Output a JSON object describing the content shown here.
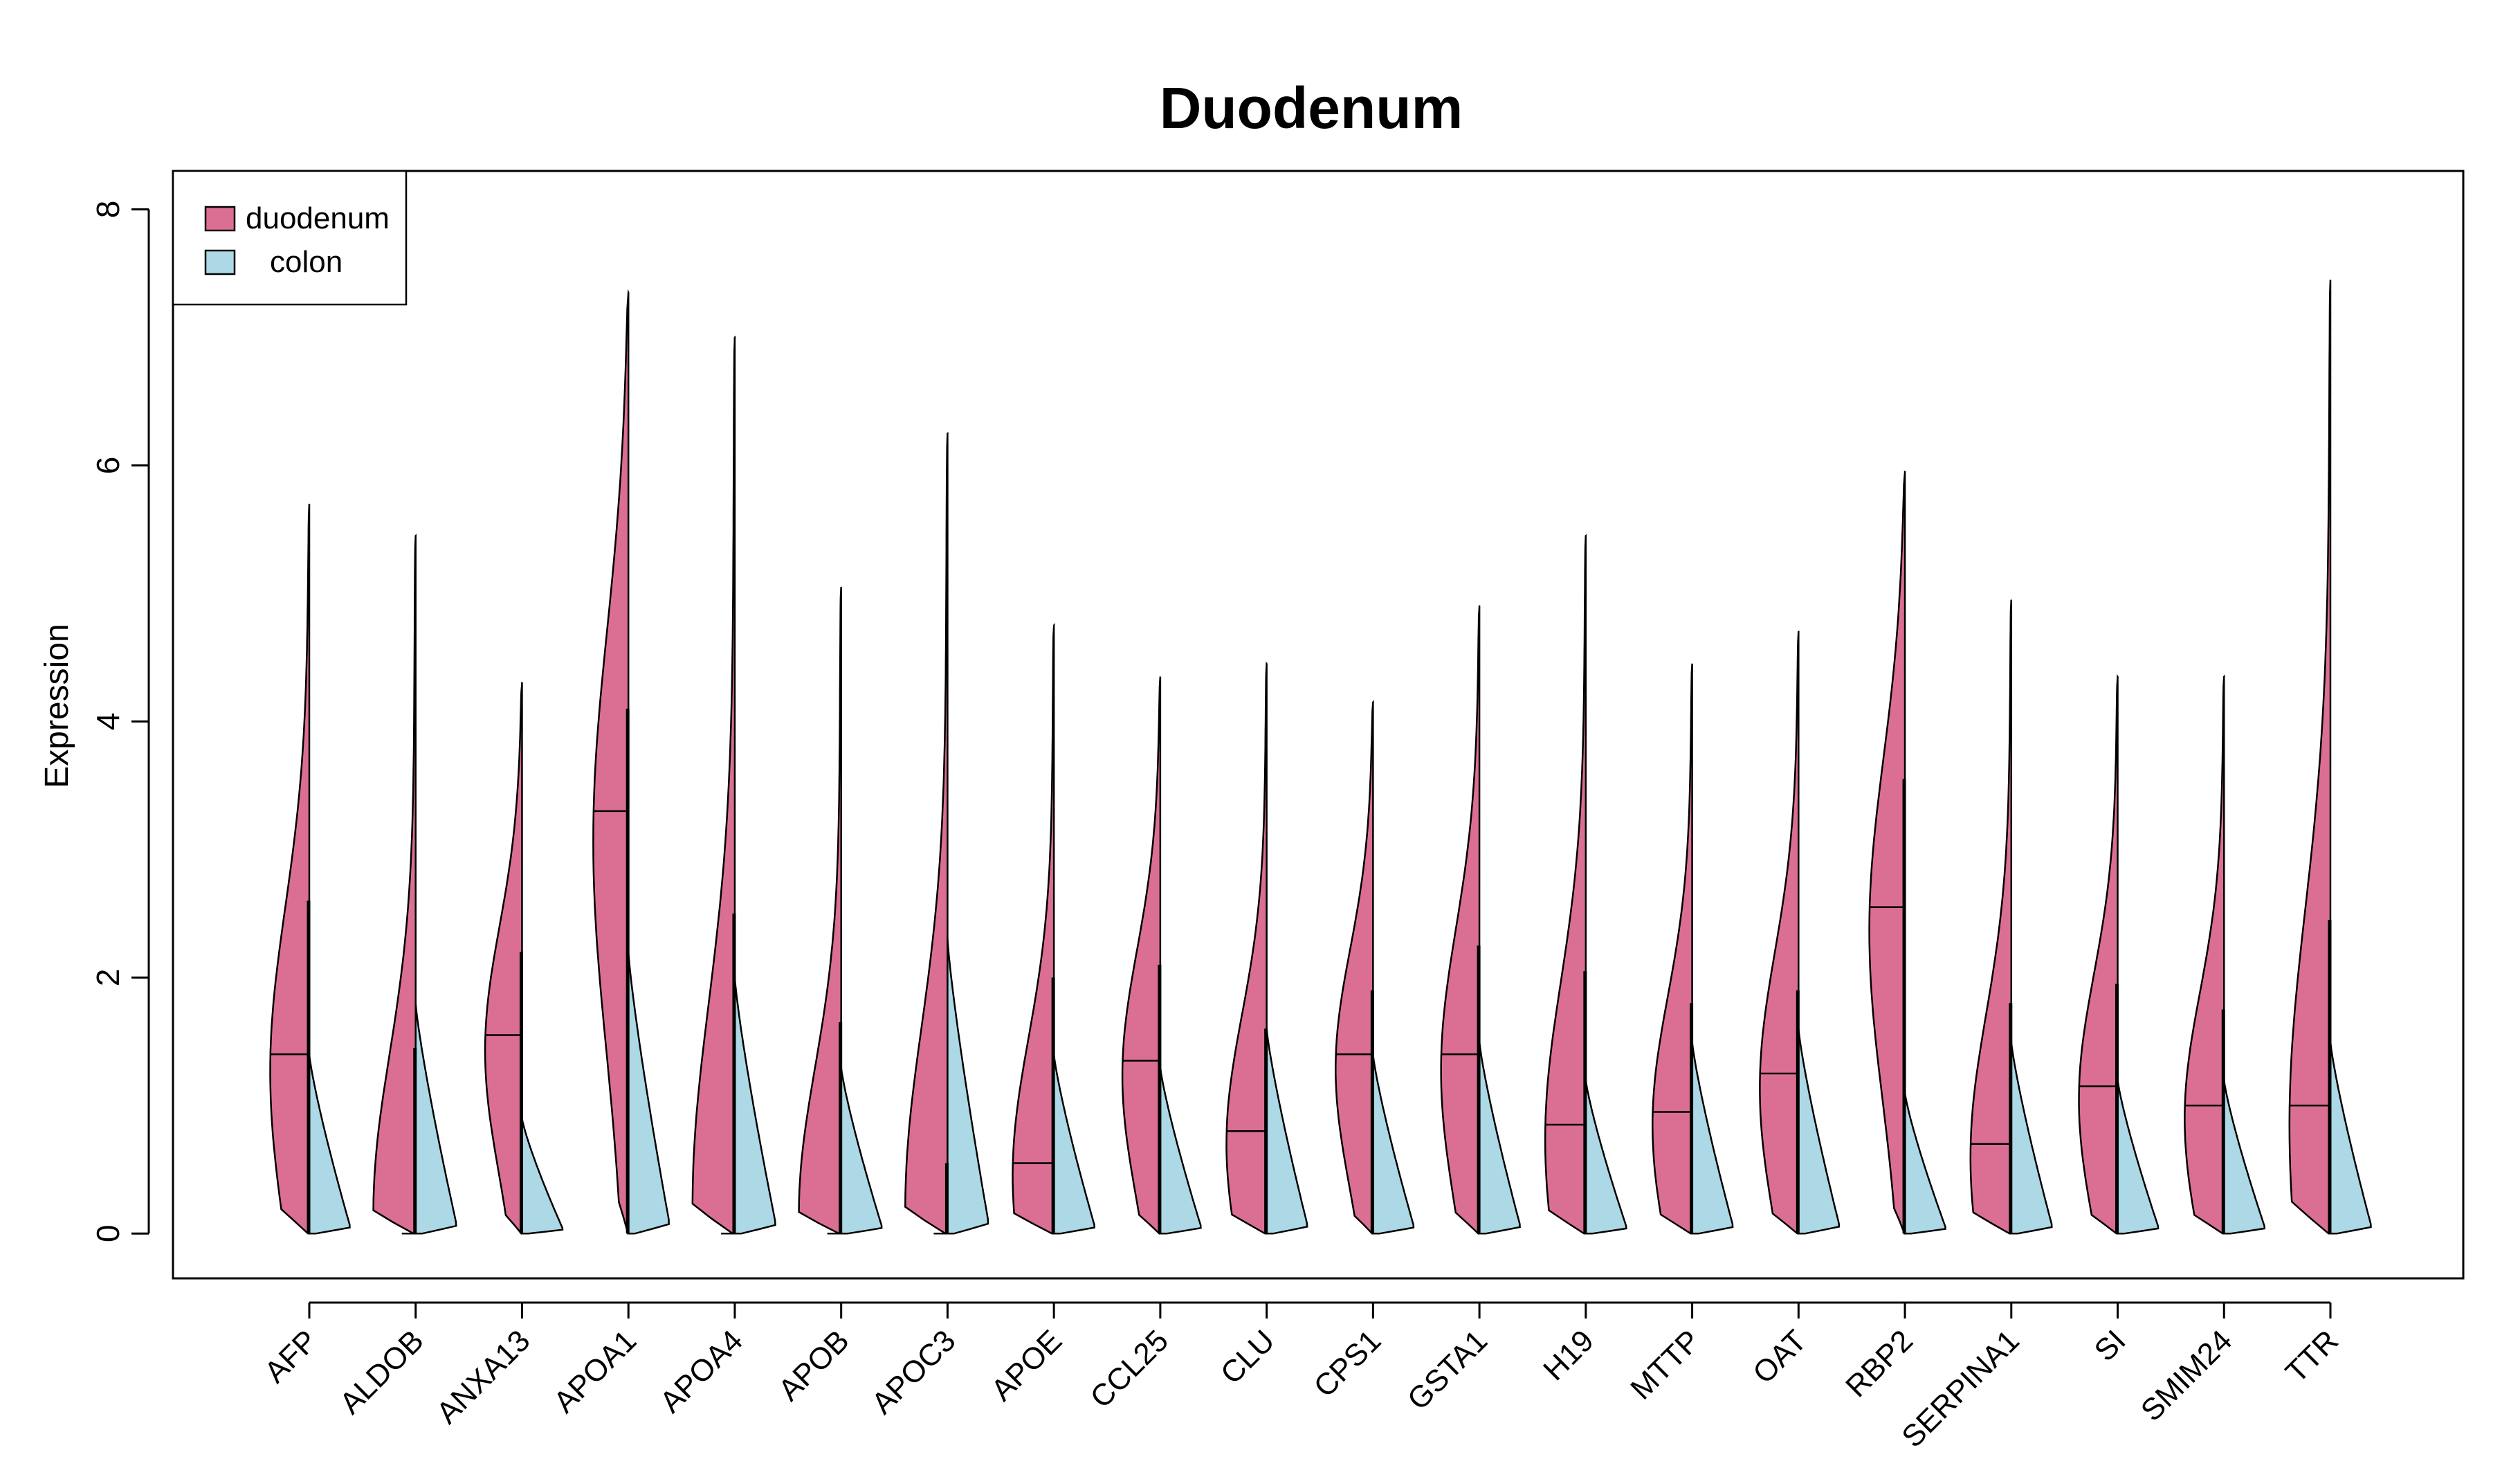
{
  "chart_data": {
    "type": "split-violin",
    "title": "Duodenum",
    "xlabel": "",
    "ylabel": "Expression",
    "ylim": [
      -0.35,
      8.3
    ],
    "yticks": [
      0,
      2,
      4,
      6,
      8
    ],
    "legend": {
      "placement": "top-left",
      "entries": [
        {
          "label": "duodenum",
          "color": "#db6f93"
        },
        {
          "label": "colon",
          "color": "#add8e6"
        }
      ]
    },
    "categories": [
      "AFP",
      "ALDOB",
      "ANXA13",
      "APOA1",
      "APOA4",
      "APOB",
      "APOC3",
      "APOE",
      "CCL25",
      "CLU",
      "CPS1",
      "GSTA1",
      "H19",
      "MTTP",
      "OAT",
      "RBP2",
      "SERPINA1",
      "SI",
      "SMIM24",
      "TTR"
    ],
    "series": [
      {
        "name": "duodenum",
        "color": "#db6f93",
        "values": [
          {
            "median": 1.4,
            "max": 5.7,
            "whisker": 2.6
          },
          {
            "median": 0.0,
            "max": 5.45,
            "whisker": 1.45
          },
          {
            "median": 1.55,
            "max": 4.3,
            "whisker": 2.2
          },
          {
            "median": 3.3,
            "max": 7.35,
            "whisker": 4.1
          },
          {
            "median": 0.0,
            "max": 7.0,
            "whisker": 2.5
          },
          {
            "median": 0.0,
            "max": 5.05,
            "whisker": 1.65
          },
          {
            "median": 0.0,
            "max": 6.25,
            "whisker": 0.55
          },
          {
            "median": 0.55,
            "max": 4.75,
            "whisker": 2.0
          },
          {
            "median": 1.35,
            "max": 4.35,
            "whisker": 2.1
          },
          {
            "median": 0.8,
            "max": 4.45,
            "whisker": 1.6
          },
          {
            "median": 1.4,
            "max": 4.15,
            "whisker": 1.9
          },
          {
            "median": 1.4,
            "max": 4.9,
            "whisker": 2.25
          },
          {
            "median": 0.85,
            "max": 5.45,
            "whisker": 2.05
          },
          {
            "median": 0.95,
            "max": 4.45,
            "whisker": 1.8
          },
          {
            "median": 1.25,
            "max": 4.7,
            "whisker": 1.9
          },
          {
            "median": 2.55,
            "max": 5.95,
            "whisker": 3.55
          },
          {
            "median": 0.7,
            "max": 4.95,
            "whisker": 1.8
          },
          {
            "median": 1.15,
            "max": 4.35,
            "whisker": 1.95
          },
          {
            "median": 1.0,
            "max": 4.35,
            "whisker": 1.75
          },
          {
            "median": 1.0,
            "max": 7.45,
            "whisker": 2.45
          }
        ]
      },
      {
        "name": "colon",
        "color": "#add8e6",
        "values": [
          {
            "median": 0,
            "max": 1.4
          },
          {
            "median": 0,
            "max": 1.8
          },
          {
            "median": 0,
            "max": 0.9
          },
          {
            "median": 0,
            "max": 2.2
          },
          {
            "median": 0,
            "max": 2.0
          },
          {
            "median": 0,
            "max": 1.3
          },
          {
            "median": 0,
            "max": 2.3
          },
          {
            "median": 0,
            "max": 1.4
          },
          {
            "median": 0,
            "max": 1.3
          },
          {
            "median": 0,
            "max": 1.6
          },
          {
            "median": 0,
            "max": 1.4
          },
          {
            "median": 0,
            "max": 1.5
          },
          {
            "median": 0,
            "max": 1.2
          },
          {
            "median": 0,
            "max": 1.5
          },
          {
            "median": 0,
            "max": 1.6
          },
          {
            "median": 0,
            "max": 1.1
          },
          {
            "median": 0,
            "max": 1.5
          },
          {
            "median": 0,
            "max": 1.2
          },
          {
            "median": 0,
            "max": 1.2
          },
          {
            "median": 0,
            "max": 1.5
          }
        ]
      }
    ]
  }
}
